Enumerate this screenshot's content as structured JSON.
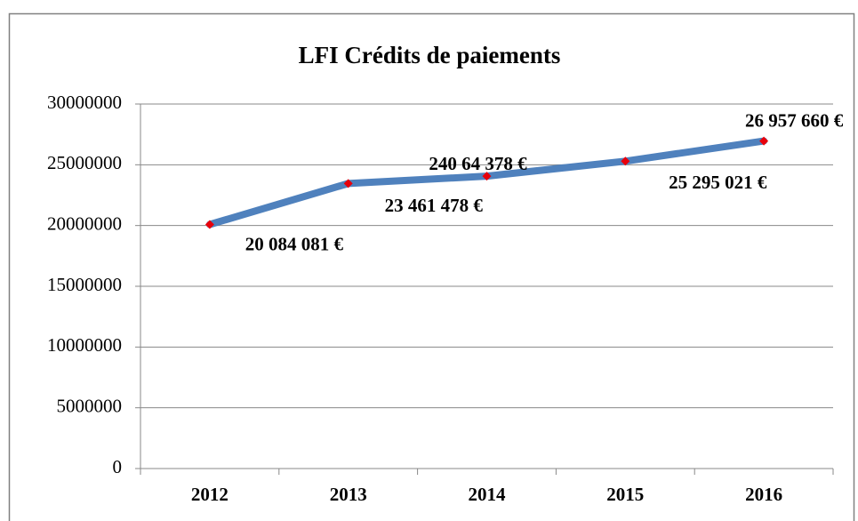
{
  "chart_data": {
    "type": "line",
    "title": "LFI Crédits de paiements",
    "categories": [
      "2012",
      "2013",
      "2014",
      "2015",
      "2016"
    ],
    "series": [
      {
        "name": "LFI Crédits de paiements",
        "color": "#4f81bd",
        "marker_color": "#e8000b",
        "values": [
          20084081,
          23461478,
          24064378,
          25295021,
          26957660
        ],
        "value_labels": [
          "20 084 081 €",
          "23 461 478 €",
          "240 64 378 €",
          "25 295 021 €",
          "26 957 660 €"
        ]
      }
    ],
    "ylim": [
      0,
      30000000
    ],
    "yticks": [
      0,
      5000000,
      10000000,
      15000000,
      20000000,
      25000000,
      30000000
    ],
    "grid": true
  }
}
